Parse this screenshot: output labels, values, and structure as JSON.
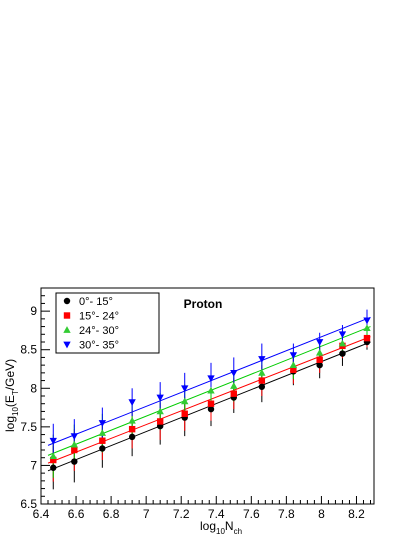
{
  "chart_data": {
    "type": "scatter",
    "title": "Proton",
    "xlabel_main": "log",
    "xlabel_sub": "10",
    "xlabel_tail": "N",
    "xlabel_tail_sub": "ch",
    "ylabel_main": "log",
    "ylabel_sub": "10",
    "ylabel_mid": "(E",
    "ylabel_mid_sub": "T",
    "ylabel_tail": "/GeV)",
    "xlim": [
      6.4,
      8.3
    ],
    "ylim": [
      6.5,
      9.3
    ],
    "xticks_major": [
      6.4,
      6.6,
      6.8,
      7.0,
      7.2,
      7.4,
      7.6,
      7.8,
      8.0,
      8.2
    ],
    "xtick_labels": [
      "6.4",
      "6.6",
      "6.8",
      "7",
      "7.2",
      "7.4",
      "7.6",
      "7.8",
      "8",
      "8.2"
    ],
    "yticks_major": [
      6.5,
      7.0,
      7.5,
      8.0,
      8.5,
      9.0
    ],
    "ytick_labels": [
      "6.5",
      "7",
      "7.5",
      "8",
      "8.5",
      "9"
    ],
    "grid": false,
    "legend_position": "top-left",
    "series": [
      {
        "name": "0°- 15°",
        "marker": "circle",
        "color": "#000000",
        "x": [
          6.47,
          6.59,
          6.75,
          6.92,
          7.08,
          7.22,
          7.37,
          7.5,
          7.66,
          7.84,
          7.99,
          8.12,
          8.26
        ],
        "y": [
          6.97,
          7.05,
          7.22,
          7.37,
          7.51,
          7.62,
          7.73,
          7.88,
          8.02,
          8.22,
          8.3,
          8.45,
          8.6
        ],
        "err": [
          0.28,
          0.27,
          0.25,
          0.25,
          0.24,
          0.24,
          0.22,
          0.2,
          0.2,
          0.18,
          0.17,
          0.16,
          0.1
        ],
        "fit": [
          [
            6.44,
            6.93
          ],
          [
            8.28,
            8.6
          ]
        ],
        "line_color": "#000000"
      },
      {
        "name": "15°- 24°",
        "marker": "square",
        "color": "#ff0000",
        "x": [
          6.47,
          6.59,
          6.75,
          6.92,
          7.08,
          7.22,
          7.37,
          7.5,
          7.66,
          7.84,
          7.99,
          8.12,
          8.26
        ],
        "y": [
          7.07,
          7.2,
          7.32,
          7.47,
          7.57,
          7.67,
          7.8,
          7.93,
          8.1,
          8.24,
          8.37,
          8.55,
          8.65
        ],
        "err": [
          0.28,
          0.27,
          0.25,
          0.25,
          0.24,
          0.22,
          0.22,
          0.2,
          0.2,
          0.18,
          0.17,
          0.16,
          0.12
        ],
        "fit": [
          [
            6.44,
            7.03
          ],
          [
            8.28,
            8.67
          ]
        ],
        "line_color": "#ff0000"
      },
      {
        "name": "24°- 30°",
        "marker": "triangle-up",
        "color": "#33cc33",
        "x": [
          6.47,
          6.59,
          6.75,
          6.92,
          7.08,
          7.22,
          7.37,
          7.5,
          7.66,
          7.84,
          7.99,
          8.12,
          8.26
        ],
        "y": [
          7.12,
          7.27,
          7.42,
          7.58,
          7.7,
          7.83,
          7.97,
          8.03,
          8.2,
          8.3,
          8.46,
          8.58,
          8.78
        ],
        "err": [
          0.28,
          0.26,
          0.25,
          0.24,
          0.24,
          0.22,
          0.2,
          0.2,
          0.2,
          0.18,
          0.16,
          0.16,
          0.15
        ],
        "fit": [
          [
            6.44,
            7.13
          ],
          [
            8.28,
            8.8
          ]
        ],
        "line_color": "#00cc00"
      },
      {
        "name": "30°- 35°",
        "marker": "triangle-down",
        "color": "#0000ff",
        "x": [
          6.47,
          6.59,
          6.75,
          6.92,
          7.08,
          7.22,
          7.37,
          7.5,
          7.66,
          7.84,
          7.99,
          8.12,
          8.26
        ],
        "y": [
          7.32,
          7.38,
          7.55,
          7.82,
          7.88,
          8.0,
          8.13,
          8.2,
          8.38,
          8.43,
          8.6,
          8.7,
          8.88
        ],
        "err": [
          0.22,
          0.22,
          0.2,
          0.18,
          0.2,
          0.2,
          0.2,
          0.2,
          0.2,
          0.15,
          0.12,
          0.12,
          0.14
        ],
        "fit": [
          [
            6.44,
            7.26
          ],
          [
            8.28,
            8.92
          ]
        ],
        "line_color": "#0000ff"
      }
    ]
  }
}
